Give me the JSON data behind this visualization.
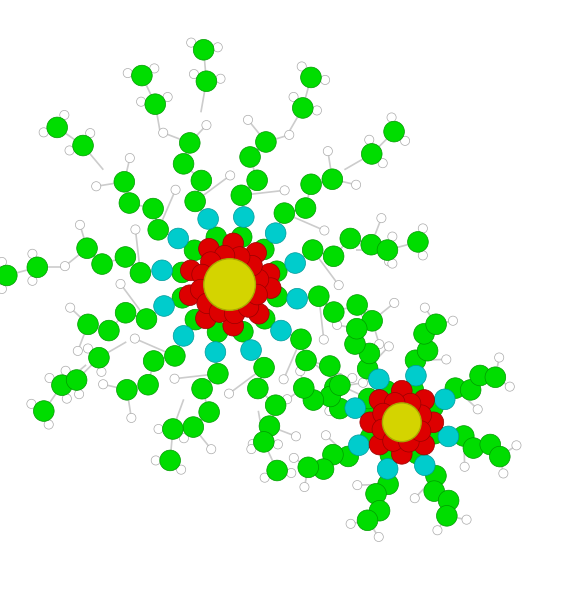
{
  "background_color": "#ffffff",
  "figsize": [
    5.74,
    5.92
  ],
  "dpi": 100,
  "title": "",
  "atom_colors": {
    "lanthanide": "#d4d400",
    "carbon": "#00dd00",
    "oxygen": "#dd0000",
    "nitrogen": "#00cccc",
    "hydrogen": "#ffffff",
    "bond": "#cccccc"
  },
  "atom_sizes": {
    "lanthanide": 0.045,
    "carbon": 0.018,
    "oxygen": 0.018,
    "nitrogen": 0.018,
    "hydrogen": 0.008
  },
  "seed": 42
}
